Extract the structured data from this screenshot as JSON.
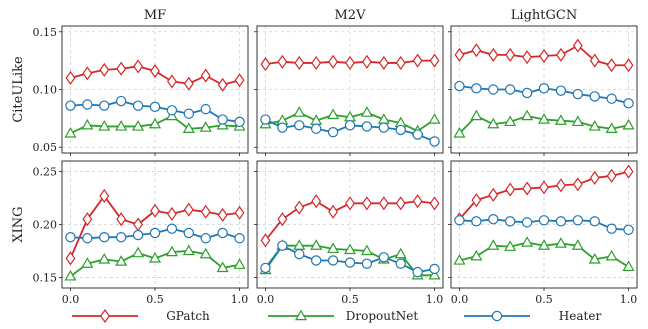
{
  "chart_data": {
    "type": "line",
    "x": [
      0.0,
      0.1,
      0.2,
      0.3,
      0.4,
      0.5,
      0.6,
      0.7,
      0.8,
      0.9,
      1.0
    ],
    "column_titles": [
      "MF",
      "M2V",
      "LightGCN"
    ],
    "row_labels": [
      "CiteULike",
      "XING"
    ],
    "x_ticks": [
      "0.0",
      "0.5",
      "1.0"
    ],
    "xlim": [
      -0.05,
      1.05
    ],
    "legend_placement": "bottom",
    "grid": true,
    "series_meta": [
      {
        "name": "GPatch",
        "color": "#d62728",
        "marker": "diamond"
      },
      {
        "name": "DropoutNet",
        "color": "#2ca02c",
        "marker": "triangle"
      },
      {
        "name": "Heater",
        "color": "#1f77b4",
        "marker": "circle"
      }
    ],
    "rows": [
      {
        "ylim": [
          0.045,
          0.155
        ],
        "y_ticks": [
          0.05,
          0.1,
          0.15
        ],
        "y_tick_labels": [
          "0.05",
          "0.10",
          "0.15"
        ],
        "panels": [
          {
            "series": [
              {
                "name": "GPatch",
                "values": [
                  0.11,
                  0.114,
                  0.117,
                  0.118,
                  0.12,
                  0.116,
                  0.107,
                  0.105,
                  0.112,
                  0.104,
                  0.108
                ]
              },
              {
                "name": "DropoutNet",
                "values": [
                  0.062,
                  0.069,
                  0.068,
                  0.068,
                  0.068,
                  0.07,
                  0.077,
                  0.066,
                  0.067,
                  0.069,
                  0.068
                ]
              },
              {
                "name": "Heater",
                "values": [
                  0.086,
                  0.087,
                  0.086,
                  0.09,
                  0.086,
                  0.085,
                  0.082,
                  0.079,
                  0.083,
                  0.074,
                  0.072
                ]
              }
            ]
          },
          {
            "series": [
              {
                "name": "GPatch",
                "values": [
                  0.122,
                  0.124,
                  0.123,
                  0.123,
                  0.124,
                  0.123,
                  0.124,
                  0.123,
                  0.123,
                  0.125,
                  0.125
                ]
              },
              {
                "name": "DropoutNet",
                "values": [
                  0.07,
                  0.073,
                  0.08,
                  0.073,
                  0.078,
                  0.076,
                  0.08,
                  0.074,
                  0.071,
                  0.064,
                  0.074
                ]
              },
              {
                "name": "Heater",
                "values": [
                  0.074,
                  0.067,
                  0.069,
                  0.066,
                  0.063,
                  0.069,
                  0.068,
                  0.067,
                  0.065,
                  0.061,
                  0.055
                ]
              }
            ]
          },
          {
            "series": [
              {
                "name": "GPatch",
                "values": [
                  0.13,
                  0.134,
                  0.13,
                  0.13,
                  0.128,
                  0.129,
                  0.13,
                  0.138,
                  0.125,
                  0.121,
                  0.121
                ]
              },
              {
                "name": "DropoutNet",
                "values": [
                  0.062,
                  0.077,
                  0.07,
                  0.072,
                  0.077,
                  0.074,
                  0.073,
                  0.072,
                  0.068,
                  0.066,
                  0.069
                ]
              },
              {
                "name": "Heater",
                "values": [
                  0.103,
                  0.101,
                  0.1,
                  0.1,
                  0.097,
                  0.101,
                  0.099,
                  0.096,
                  0.094,
                  0.092,
                  0.088
                ]
              }
            ]
          }
        ]
      },
      {
        "ylim": [
          0.14,
          0.26
        ],
        "y_ticks": [
          0.15,
          0.2,
          0.25
        ],
        "y_tick_labels": [
          "0.15",
          "0.20",
          "0.25"
        ],
        "panels": [
          {
            "series": [
              {
                "name": "GPatch",
                "values": [
                  0.168,
                  0.205,
                  0.227,
                  0.205,
                  0.2,
                  0.213,
                  0.21,
                  0.214,
                  0.212,
                  0.209,
                  0.211
                ]
              },
              {
                "name": "DropoutNet",
                "values": [
                  0.151,
                  0.163,
                  0.167,
                  0.165,
                  0.173,
                  0.168,
                  0.174,
                  0.175,
                  0.172,
                  0.159,
                  0.162
                ]
              },
              {
                "name": "Heater",
                "values": [
                  0.188,
                  0.187,
                  0.188,
                  0.188,
                  0.19,
                  0.192,
                  0.196,
                  0.192,
                  0.187,
                  0.192,
                  0.187
                ]
              }
            ]
          },
          {
            "series": [
              {
                "name": "GPatch",
                "values": [
                  0.185,
                  0.205,
                  0.216,
                  0.222,
                  0.212,
                  0.22,
                  0.22,
                  0.22,
                  0.22,
                  0.222,
                  0.22
                ]
              },
              {
                "name": "DropoutNet",
                "values": [
                  0.157,
                  0.18,
                  0.18,
                  0.18,
                  0.177,
                  0.176,
                  0.175,
                  0.167,
                  0.172,
                  0.152,
                  0.152
                ]
              },
              {
                "name": "Heater",
                "values": [
                  0.159,
                  0.18,
                  0.172,
                  0.166,
                  0.166,
                  0.164,
                  0.163,
                  0.169,
                  0.163,
                  0.155,
                  0.158
                ]
              }
            ]
          },
          {
            "series": [
              {
                "name": "GPatch",
                "values": [
                  0.205,
                  0.223,
                  0.228,
                  0.233,
                  0.234,
                  0.235,
                  0.237,
                  0.238,
                  0.244,
                  0.246,
                  0.25
                ]
              },
              {
                "name": "DropoutNet",
                "values": [
                  0.166,
                  0.17,
                  0.18,
                  0.179,
                  0.183,
                  0.18,
                  0.182,
                  0.18,
                  0.167,
                  0.17,
                  0.16
                ]
              },
              {
                "name": "Heater",
                "values": [
                  0.204,
                  0.203,
                  0.205,
                  0.203,
                  0.202,
                  0.204,
                  0.203,
                  0.204,
                  0.203,
                  0.196,
                  0.195
                ]
              }
            ]
          }
        ]
      }
    ]
  }
}
